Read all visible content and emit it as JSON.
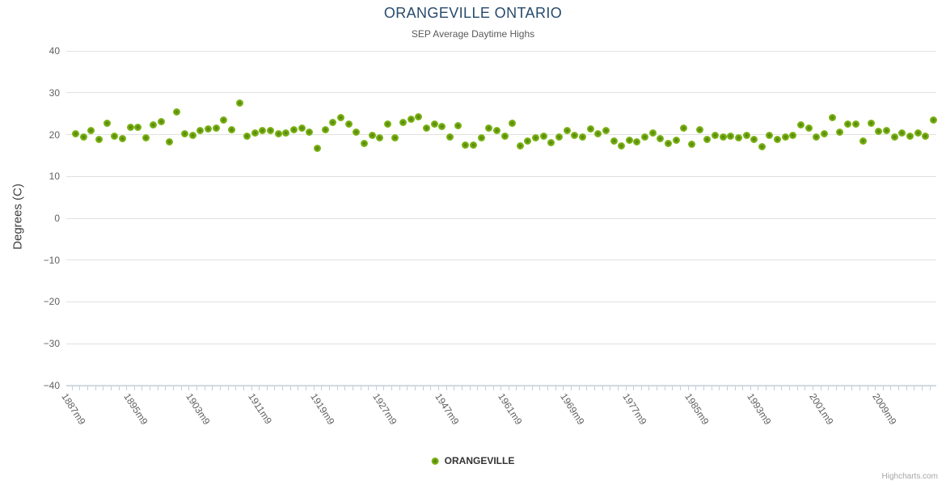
{
  "title": "ORANGEVILLE ONTARIO",
  "subtitle": "SEP Average Daytime Highs",
  "y_axis": {
    "title": "Degrees (C)",
    "tick_labels": [
      "40",
      "30",
      "20",
      "10",
      "0",
      "−10",
      "−20",
      "−30",
      "−40"
    ]
  },
  "x_axis": {
    "tick_labels": [
      "1887m9",
      "1895m9",
      "1903m9",
      "1911m9",
      "1919m9",
      "1927m9",
      "1947m9",
      "1961m9",
      "1969m9",
      "1977m9",
      "1985m9",
      "1993m9",
      "2001m9",
      "2009m9"
    ],
    "label_step": 8
  },
  "legend": {
    "label": "ORANGEVILLE"
  },
  "credits": {
    "label": "Highcharts.com"
  },
  "colors": {
    "marker": "#8bbc21",
    "title_text": "#274b6d",
    "axis_labels": "#606060",
    "grid": "#e1e1e1",
    "axis_line": "#c0d0e0"
  },
  "chart_data": {
    "type": "scatter",
    "title": "ORANGEVILLE ONTARIO",
    "subtitle": "SEP Average Daytime Highs",
    "xlabel": "",
    "ylabel": "Degrees (C)",
    "ylim": [
      -40,
      40
    ],
    "y_tick_interval": 10,
    "grid": "horizontal",
    "legend_position": "bottom-center",
    "x_tick_labels": [
      "1887m9",
      "1895m9",
      "1903m9",
      "1911m9",
      "1919m9",
      "1927m9",
      "1947m9",
      "1961m9",
      "1969m9",
      "1977m9",
      "1985m9",
      "1993m9",
      "2001m9",
      "2009m9"
    ],
    "x_label_step": 8,
    "n_points": 111,
    "series": [
      {
        "name": "ORANGEVILLE",
        "marker_color": "#8bbc21",
        "values": [
          20.2,
          19.4,
          21.0,
          18.9,
          22.7,
          19.7,
          19.0,
          21.8,
          21.8,
          19.2,
          22.3,
          23.1,
          18.2,
          25.4,
          20.3,
          19.8,
          20.9,
          21.4,
          21.6,
          23.6,
          21.2,
          27.5,
          19.6,
          20.4,
          20.9,
          21.0,
          20.2,
          20.5,
          21.2,
          21.6,
          20.6,
          16.8,
          21.2,
          23.0,
          24.1,
          22.5,
          20.7,
          17.9,
          19.9,
          19.2,
          22.5,
          19.2,
          22.9,
          23.8,
          24.2,
          21.5,
          22.6,
          22.0,
          19.5,
          22.1,
          17.6,
          17.6,
          19.2,
          21.6,
          20.9,
          19.6,
          22.8,
          17.4,
          18.4,
          19.2,
          19.6,
          18.0,
          19.4,
          21.0,
          19.8,
          19.4,
          21.4,
          20.3,
          21.0,
          18.4,
          17.3,
          18.6,
          18.2,
          19.4,
          20.5,
          19.0,
          17.9,
          18.6,
          21.5,
          17.8,
          21.2,
          18.9,
          19.9,
          19.4,
          19.7,
          19.2,
          19.8,
          18.9,
          17.1,
          19.9,
          18.9,
          19.4,
          19.9,
          22.3,
          21.5,
          19.4,
          20.3,
          24.0,
          20.7,
          22.6,
          22.6,
          18.5,
          22.7,
          20.8,
          21.0,
          19.5,
          20.5,
          19.7,
          20.4,
          19.7,
          23.5
        ]
      }
    ]
  }
}
